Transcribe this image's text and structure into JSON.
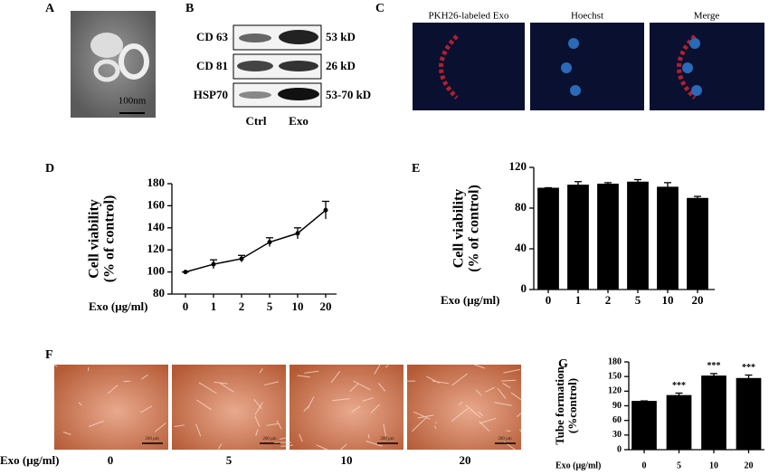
{
  "panel_labels": [
    "A",
    "B",
    "C",
    "D",
    "E",
    "F",
    "G"
  ],
  "tem": {
    "scale_label": "100nm"
  },
  "blot": {
    "rows": [
      {
        "name": "CD 63",
        "size": "53 kD"
      },
      {
        "name": "CD 81",
        "size": "26 kD"
      },
      {
        "name": "HSP70",
        "size": "53-70 kD"
      }
    ],
    "lanes": [
      "Ctrl",
      "Exo"
    ]
  },
  "microscopy": {
    "columns": [
      "PKH26-labeled Exo",
      "Hoechst",
      "Merge"
    ]
  },
  "tube_images": {
    "x_label": "Exo (μg/ml)",
    "doses": [
      "0",
      "5",
      "10",
      "20"
    ],
    "scale_label": "200 μm"
  },
  "chart_data": [
    {
      "type": "line",
      "y_label": [
        "Cell viability",
        "(% of control)"
      ],
      "x_label": "Exo (μg/ml)",
      "categories": [
        "0",
        "1",
        "2",
        "5",
        "10",
        "20"
      ],
      "values": [
        100,
        107,
        112,
        127,
        135,
        156
      ],
      "errors": [
        0,
        4,
        3,
        4,
        5,
        8
      ],
      "color": "#000000",
      "ylim": [
        80,
        180
      ],
      "yticks": [
        80,
        100,
        120,
        140,
        160,
        180
      ]
    },
    {
      "type": "bar",
      "y_label": [
        "Cell viability",
        "(% of control)"
      ],
      "x_label": "Exo (μg/ml)",
      "categories": [
        "0",
        "1",
        "2",
        "5",
        "10",
        "20"
      ],
      "values": [
        100,
        103,
        104,
        106,
        101,
        90
      ],
      "errors": [
        0,
        3,
        1,
        2,
        4,
        1.5
      ],
      "color": "#000000",
      "ylim": [
        0,
        120
      ],
      "yticks": [
        0,
        40,
        80,
        120
      ]
    },
    {
      "type": "bar",
      "y_label": [
        "Tube formation",
        "(%control)"
      ],
      "x_label": "Exo (μg/ml)",
      "categories": [
        "0",
        "5",
        "10",
        "20"
      ],
      "values": [
        100,
        112,
        152,
        147
      ],
      "errors": [
        0,
        4,
        4,
        6
      ],
      "annotations": [
        null,
        "***",
        "***",
        "***"
      ],
      "color": "#000000",
      "ylim": [
        0,
        180
      ],
      "yticks": [
        0,
        30,
        60,
        90,
        120,
        150,
        180
      ]
    }
  ]
}
